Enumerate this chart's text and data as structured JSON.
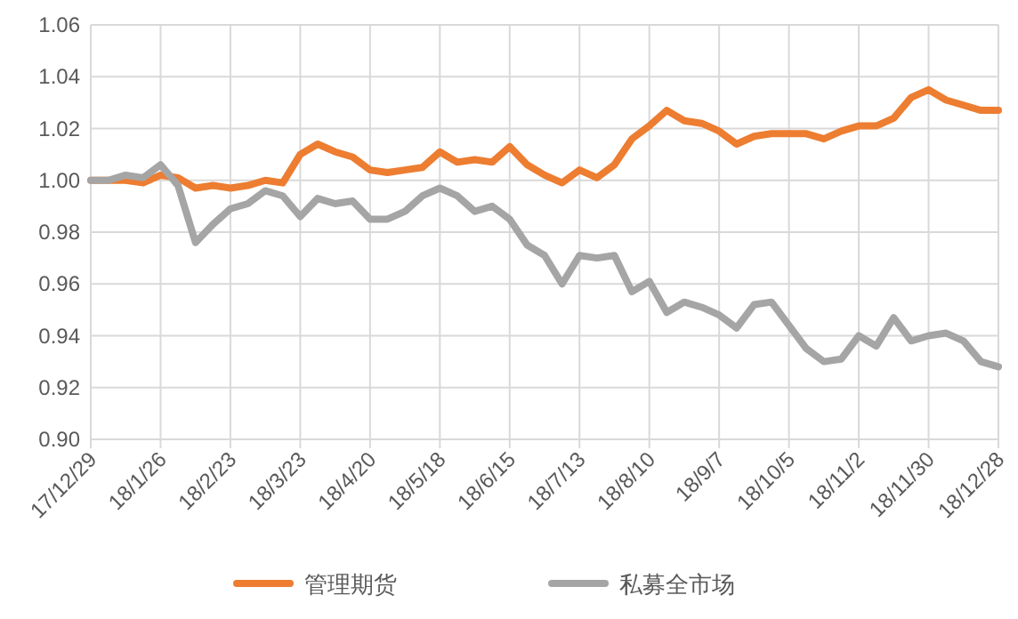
{
  "chart_data": {
    "type": "line",
    "categories": [
      "17/12/29",
      null,
      null,
      null,
      "18/1/26",
      null,
      null,
      null,
      "18/2/23",
      null,
      null,
      null,
      "18/3/23",
      null,
      null,
      null,
      "18/4/20",
      null,
      null,
      null,
      "18/5/18",
      null,
      null,
      null,
      "18/6/15",
      null,
      null,
      null,
      "18/7/13",
      null,
      null,
      null,
      "18/8/10",
      null,
      null,
      null,
      "18/9/7",
      null,
      null,
      null,
      "18/10/5",
      null,
      null,
      null,
      "18/11/2",
      null,
      null,
      null,
      "18/11/30",
      null,
      null,
      null,
      "18/12/28"
    ],
    "series": [
      {
        "name": "管理期货",
        "color": "#ed7d31",
        "values": [
          1.0,
          1.0,
          1.0,
          0.999,
          1.002,
          1.001,
          0.997,
          0.998,
          0.997,
          0.998,
          1.0,
          0.999,
          1.01,
          1.014,
          1.011,
          1.009,
          1.004,
          1.003,
          1.004,
          1.005,
          1.011,
          1.007,
          1.008,
          1.007,
          1.013,
          1.006,
          1.002,
          0.999,
          1.004,
          1.001,
          1.006,
          1.016,
          1.021,
          1.027,
          1.023,
          1.022,
          1.019,
          1.014,
          1.017,
          1.018,
          1.018,
          1.018,
          1.016,
          1.019,
          1.021,
          1.021,
          1.024,
          1.032,
          1.035,
          1.031,
          1.029,
          1.027,
          1.027
        ]
      },
      {
        "name": "私募全市场",
        "color": "#a5a5a5",
        "values": [
          1.0,
          1.0,
          1.002,
          1.001,
          1.006,
          0.998,
          0.976,
          0.983,
          0.989,
          0.991,
          0.996,
          0.994,
          0.986,
          0.993,
          0.991,
          0.992,
          0.985,
          0.985,
          0.988,
          0.994,
          0.997,
          0.994,
          0.988,
          0.99,
          0.985,
          0.975,
          0.971,
          0.96,
          0.971,
          0.97,
          0.971,
          0.957,
          0.961,
          0.949,
          0.953,
          0.951,
          0.948,
          0.943,
          0.952,
          0.953,
          0.944,
          0.935,
          0.93,
          0.931,
          0.94,
          0.936,
          0.947,
          0.938,
          0.94,
          0.941,
          0.938,
          0.93,
          0.928
        ]
      }
    ],
    "ylim": [
      0.9,
      1.06
    ],
    "yticks": [
      {
        "value": 0.9,
        "label": "0.90"
      },
      {
        "value": 0.92,
        "label": "0.92"
      },
      {
        "value": 0.94,
        "label": "0.94"
      },
      {
        "value": 0.96,
        "label": "0.96"
      },
      {
        "value": 0.98,
        "label": "0.98"
      },
      {
        "value": 1.0,
        "label": "1.00"
      },
      {
        "value": 1.02,
        "label": "1.02"
      },
      {
        "value": 1.04,
        "label": "1.04"
      },
      {
        "value": 1.06,
        "label": "1.06"
      }
    ],
    "grid": true,
    "legend": "bottom",
    "marker": "none",
    "line_style": "solid"
  }
}
